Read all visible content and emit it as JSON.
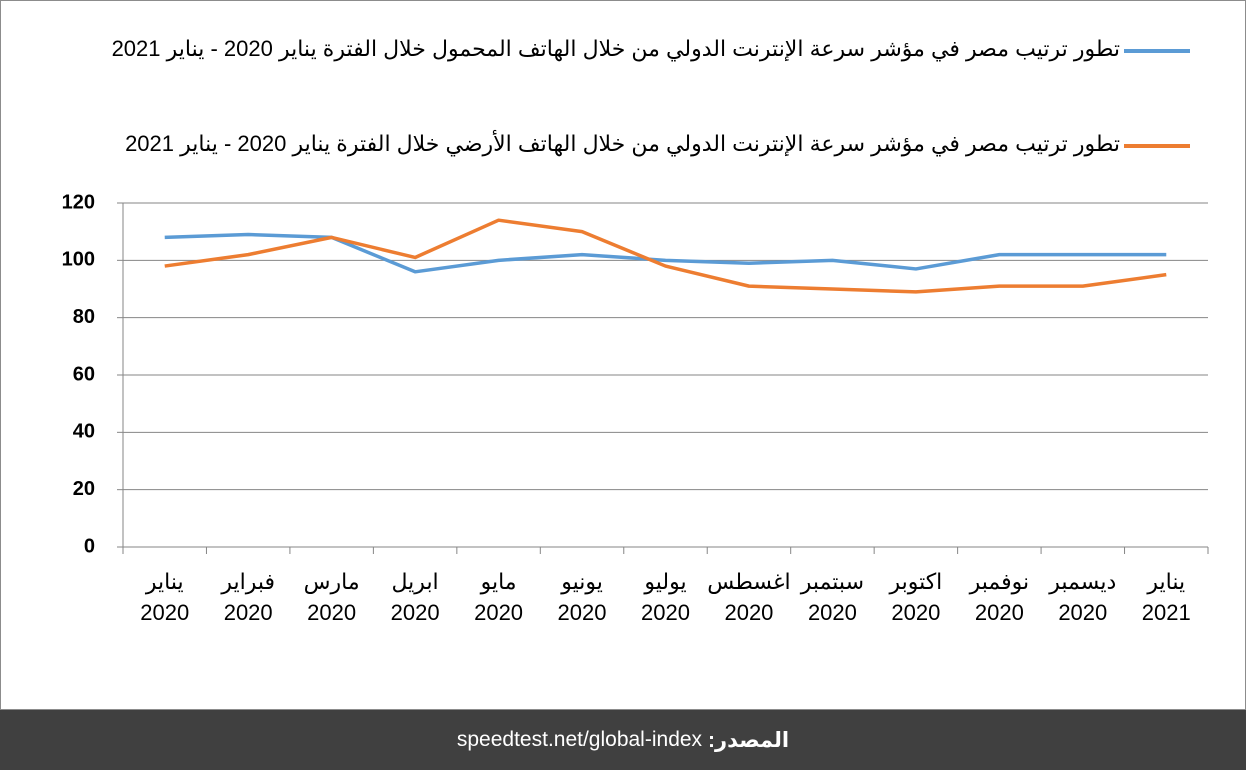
{
  "chart_data": {
    "type": "line",
    "categories": [
      "يناير 2020",
      "فبراير 2020",
      "مارس 2020",
      "ابريل 2020",
      "مايو 2020",
      "يونيو 2020",
      "يوليو 2020",
      "اغسطس 2020",
      "سبتمبر 2020",
      "اكتوبر 2020",
      "نوفمبر 2020",
      "ديسمبر 2020",
      "يناير 2021"
    ],
    "series": [
      {
        "name": "تطور ترتيب مصر في مؤشر سرعة الإنترنت الدولي من خلال الهاتف المحمول خلال الفترة يناير 2020 - يناير 2021",
        "color": "#5b9bd5",
        "values": [
          108,
          109,
          108,
          96,
          100,
          102,
          100,
          99,
          100,
          97,
          102,
          102,
          102
        ]
      },
      {
        "name": "تطور ترتيب مصر في مؤشر سرعة الإنترنت الدولي من خلال الهاتف الأرضي خلال الفترة يناير 2020 - يناير 2021",
        "color": "#ed7d31",
        "values": [
          98,
          102,
          108,
          101,
          114,
          110,
          98,
          91,
          90,
          89,
          91,
          91,
          95
        ]
      }
    ],
    "ylim": [
      0,
      120
    ],
    "yticks": [
      0,
      20,
      40,
      60,
      80,
      100,
      120
    ],
    "grid": true,
    "legend": "top"
  },
  "footer": {
    "label": "المصدر:",
    "text": "speedtest.net/global-index"
  }
}
